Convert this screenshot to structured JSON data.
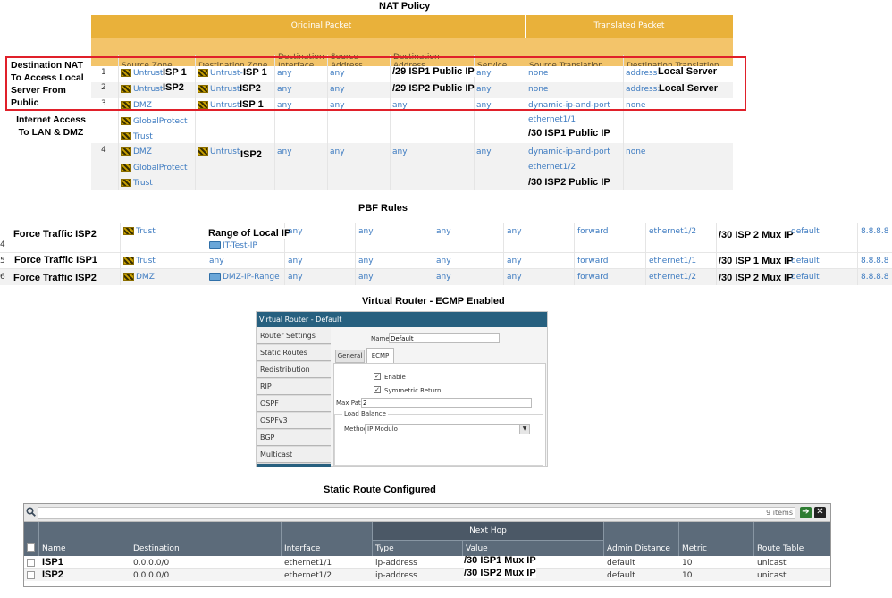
{
  "titles": {
    "nat": "NAT Policy",
    "pbf": "PBF Rules",
    "vr": "Virtual Router - ECMP Enabled",
    "static": "Static Route Configured"
  },
  "nat": {
    "group_original": "Original Packet",
    "group_translated": "Translated Packet",
    "columns": [
      "Source Zone",
      "Destination Zone",
      "Destination Interface",
      "Source Address",
      "Destination Address",
      "Service",
      "Source Translation",
      "Destination Translation"
    ],
    "annotations": {
      "dest_nat": "Destination NAT To Access Local Server From Public",
      "internet": "Internet Access To LAN & DMZ"
    },
    "rows": [
      {
        "num": "1",
        "src_zone": "Untrust-",
        "src_note": "ISP 1",
        "dst_zone": "Untrust-",
        "dst_note": "ISP 1",
        "dst_if": "any",
        "src_addr": "any",
        "dst_addr": "/29 ISP1 Public IP",
        "service": "any",
        "src_trans": "none",
        "dst_trans": "address:",
        "dst_trans_note": "Local Server"
      },
      {
        "num": "2",
        "src_zone": "Untrust-",
        "src_note": "ISP2",
        "dst_zone": "Untrust-",
        "dst_note": "ISP2",
        "dst_if": "any",
        "src_addr": "any",
        "dst_addr": "/29 ISP2 Public IP",
        "service": "any",
        "src_trans": "none",
        "dst_trans": "address:",
        "dst_trans_note": "Local Server"
      },
      {
        "num": "3",
        "src_zones": [
          "DMZ",
          "GlobalProtect",
          "Trust"
        ],
        "dst_zone": "Untrust-",
        "dst_note": "ISP 1",
        "dst_if": "any",
        "src_addr": "any",
        "dst_addr": "any",
        "service": "any",
        "src_trans": [
          "dynamic-ip-and-port",
          "ethernet1/1"
        ],
        "src_trans_note": "/30 ISP1 Public IP",
        "dst_trans": "none"
      },
      {
        "num": "4",
        "src_zones": [
          "DMZ",
          "GlobalProtect",
          "Trust"
        ],
        "dst_zone": "Untrust-",
        "dst_note": "ISP2",
        "dst_if": "any",
        "src_addr": "any",
        "dst_addr": "any",
        "service": "any",
        "src_trans": [
          "dynamic-ip-and-port",
          "ethernet1/2"
        ],
        "src_trans_note": "/30 ISP2 Public IP",
        "dst_trans": "none"
      }
    ]
  },
  "pbf": {
    "rows": [
      {
        "num": "4",
        "name": "Force Traffic ISP2",
        "zone": "Trust",
        "src_note": "Range of Local IP",
        "src_obj": "IT-Test-IP",
        "c1": "any",
        "c2": "any",
        "c3": "any",
        "c4": "any",
        "action": "forward",
        "iface": "ethernet1/2",
        "nexthop": "/30 ISP 2 Mux IP",
        "monitor": "default",
        "ip": "8.8.8.8"
      },
      {
        "num": "5",
        "name": "Force Traffic ISP1",
        "zone": "Trust",
        "src": "any",
        "c1": "any",
        "c2": "any",
        "c3": "any",
        "c4": "any",
        "action": "forward",
        "iface": "ethernet1/1",
        "nexthop": "/30 ISP 1 Mux IP",
        "monitor": "default",
        "ip": "8.8.8.8"
      },
      {
        "num": "6",
        "name": "Force Traffic ISP2",
        "zone": "DMZ",
        "src_obj": "DMZ-IP-Range",
        "c1": "any",
        "c2": "any",
        "c3": "any",
        "c4": "any",
        "action": "forward",
        "iface": "ethernet1/2",
        "nexthop": "/30 ISP 2 Mux IP",
        "monitor": "default",
        "ip": "8.8.8.8"
      }
    ]
  },
  "vr": {
    "title": "Virtual Router - Default",
    "nav": [
      "Router Settings",
      "Static Routes",
      "Redistribution Profile",
      "RIP",
      "OSPF",
      "OSPFv3",
      "BGP",
      "Multicast"
    ],
    "name_label": "Name",
    "name_value": "Default",
    "tabs": [
      "General",
      "ECMP"
    ],
    "enable_label": "Enable",
    "symmetric_label": "Symmetric Return",
    "maxpath_label": "Max Path",
    "maxpath_value": "2",
    "lb_label": "Load Balance",
    "method_label": "Method",
    "method_value": "IP Modulo"
  },
  "static": {
    "search_placeholder": "",
    "count": "9 items",
    "nexthop_group": "Next Hop",
    "columns": [
      "Name",
      "Destination",
      "Interface",
      "Type",
      "Value",
      "Admin Distance",
      "Metric",
      "Route Table"
    ],
    "rows": [
      {
        "name": "ISP1",
        "dest": "0.0.0.0/0",
        "iface": "ethernet1/1",
        "type": "ip-address",
        "value": "/30 ISP1 Mux IP",
        "admin": "default",
        "metric": "10",
        "table": "unicast"
      },
      {
        "name": "ISP2",
        "dest": "0.0.0.0/0",
        "iface": "ethernet1/2",
        "type": "ip-address",
        "value": "/30 ISP2 Mux IP",
        "admin": "default",
        "metric": "10",
        "table": "unicast"
      }
    ]
  }
}
